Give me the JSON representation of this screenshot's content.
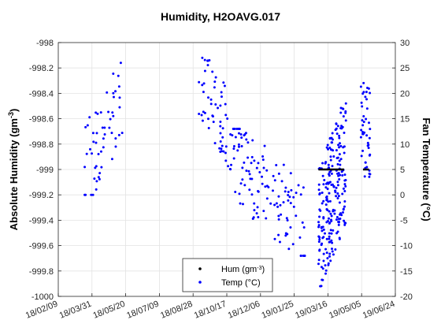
{
  "chart_data": {
    "type": "scatter",
    "title": "Humidity, H2OAVG.017",
    "ylabel_left": "Absolute Humidity (gm",
    "ylabel_left_sup": "-3",
    "ylabel_left_end": ")",
    "ylabel_right": "Fan Temperature (°C)",
    "xticks": [
      "18/02/09",
      "18/03/31",
      "18/05/20",
      "18/07/09",
      "18/08/28",
      "18/10/17",
      "18/12/06",
      "19/01/25",
      "19/03/16",
      "19/05/05",
      "19/06/24"
    ],
    "xrange_days": [
      0,
      500
    ],
    "yleft": {
      "min": -1000,
      "max": -998,
      "ticks": [
        "-998",
        "-998.2",
        "-998.4",
        "-998.6",
        "-998.8",
        "-999",
        "-999.2",
        "-999.4",
        "-999.6",
        "-999.8",
        "-1000"
      ]
    },
    "yright": {
      "min": -20,
      "max": 30,
      "ticks": [
        "30",
        "25",
        "20",
        "15",
        "10",
        "5",
        "0",
        "-5",
        "-10",
        "-15",
        "-20"
      ]
    },
    "grid": true,
    "legend": {
      "placement": "bottom-center",
      "entries": [
        {
          "label": "Hum (gm",
          "sup": "-3",
          "end": ")",
          "color": "#000000"
        },
        {
          "label": "Temp (°C)",
          "color": "#0000ff"
        }
      ]
    },
    "series": [
      {
        "name": "Hum (gm-3)",
        "color": "#000000",
        "segments": [
          {
            "x": [
              "19/03/02",
              "19/04/09"
            ],
            "y": -999
          },
          {
            "x": [
              "19/05/07",
              "19/05/16"
            ],
            "y": -999
          }
        ]
      },
      {
        "name": "Temp (°C)",
        "color": "#0000ff",
        "clusters": [
          {
            "x_from": "18/03/20",
            "x_to": "18/05/16",
            "y_from": 0,
            "y_to": 26
          },
          {
            "x_from": "18/09/05",
            "x_to": "18/10/25",
            "y_from": 5,
            "y_to": 27
          },
          {
            "x_from": "18/10/25",
            "x_to": "19/02/10",
            "y_from": -12,
            "y_to": 13
          },
          {
            "x_from": "19/03/02",
            "x_to": "19/04/12",
            "y_from": -18,
            "y_to": 18
          },
          {
            "x_from": "19/05/04",
            "x_to": "19/05/18",
            "y_from": -2,
            "y_to": 25
          }
        ]
      }
    ]
  },
  "colors": {
    "temp": "#0000ff",
    "hum": "#000000",
    "grid": "#e3e3e3",
    "axis": "#262626"
  }
}
